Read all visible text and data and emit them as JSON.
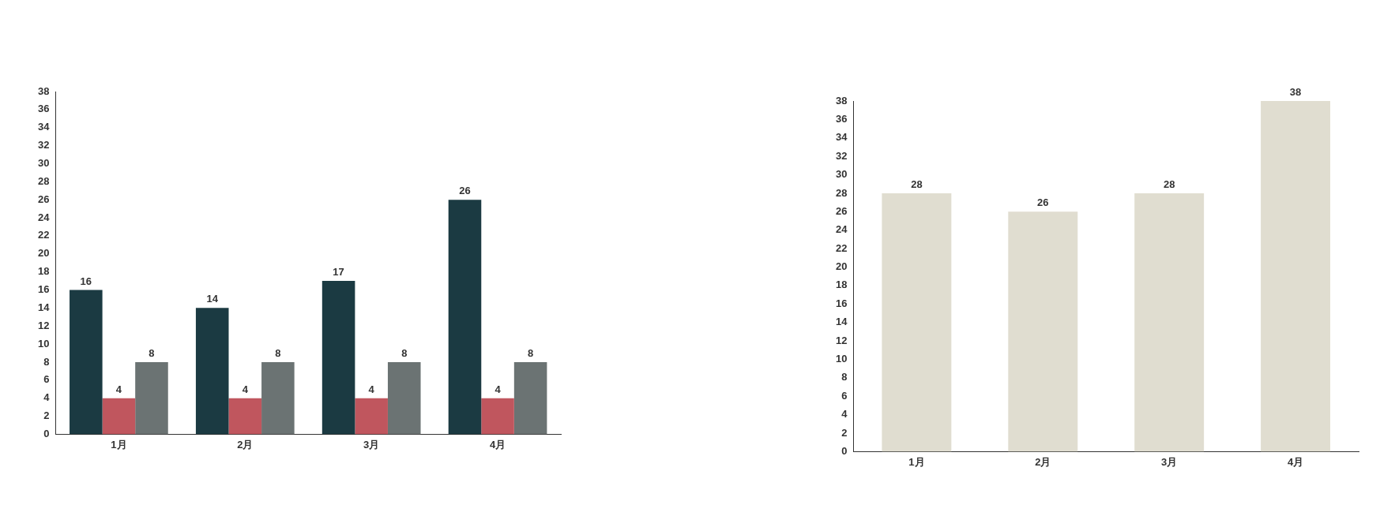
{
  "chart_data": [
    {
      "type": "bar",
      "categories": [
        "1月",
        "2月",
        "3月",
        "4月"
      ],
      "series": [
        {
          "color": "#1b3a42",
          "values": [
            16,
            14,
            17,
            26
          ]
        },
        {
          "color": "#c0565e",
          "values": [
            4,
            4,
            4,
            4
          ]
        },
        {
          "color": "#6b7373",
          "values": [
            8,
            8,
            8,
            8
          ]
        }
      ],
      "ylim": [
        0,
        38
      ],
      "yticks": [
        0,
        2,
        4,
        6,
        8,
        10,
        12,
        14,
        16,
        18,
        20,
        22,
        24,
        26,
        28,
        30,
        32,
        34,
        36,
        38
      ],
      "grid": false,
      "legend": false,
      "data_labels": true
    },
    {
      "type": "bar",
      "categories": [
        "1月",
        "2月",
        "3月",
        "4月"
      ],
      "series": [
        {
          "color": "#e0ddd0",
          "values": [
            28,
            26,
            28,
            38
          ]
        }
      ],
      "ylim": [
        0,
        38
      ],
      "yticks": [
        0,
        2,
        4,
        6,
        8,
        10,
        12,
        14,
        16,
        18,
        20,
        22,
        24,
        26,
        28,
        30,
        32,
        34,
        36,
        38
      ],
      "grid": false,
      "legend": false,
      "data_labels": true
    }
  ]
}
